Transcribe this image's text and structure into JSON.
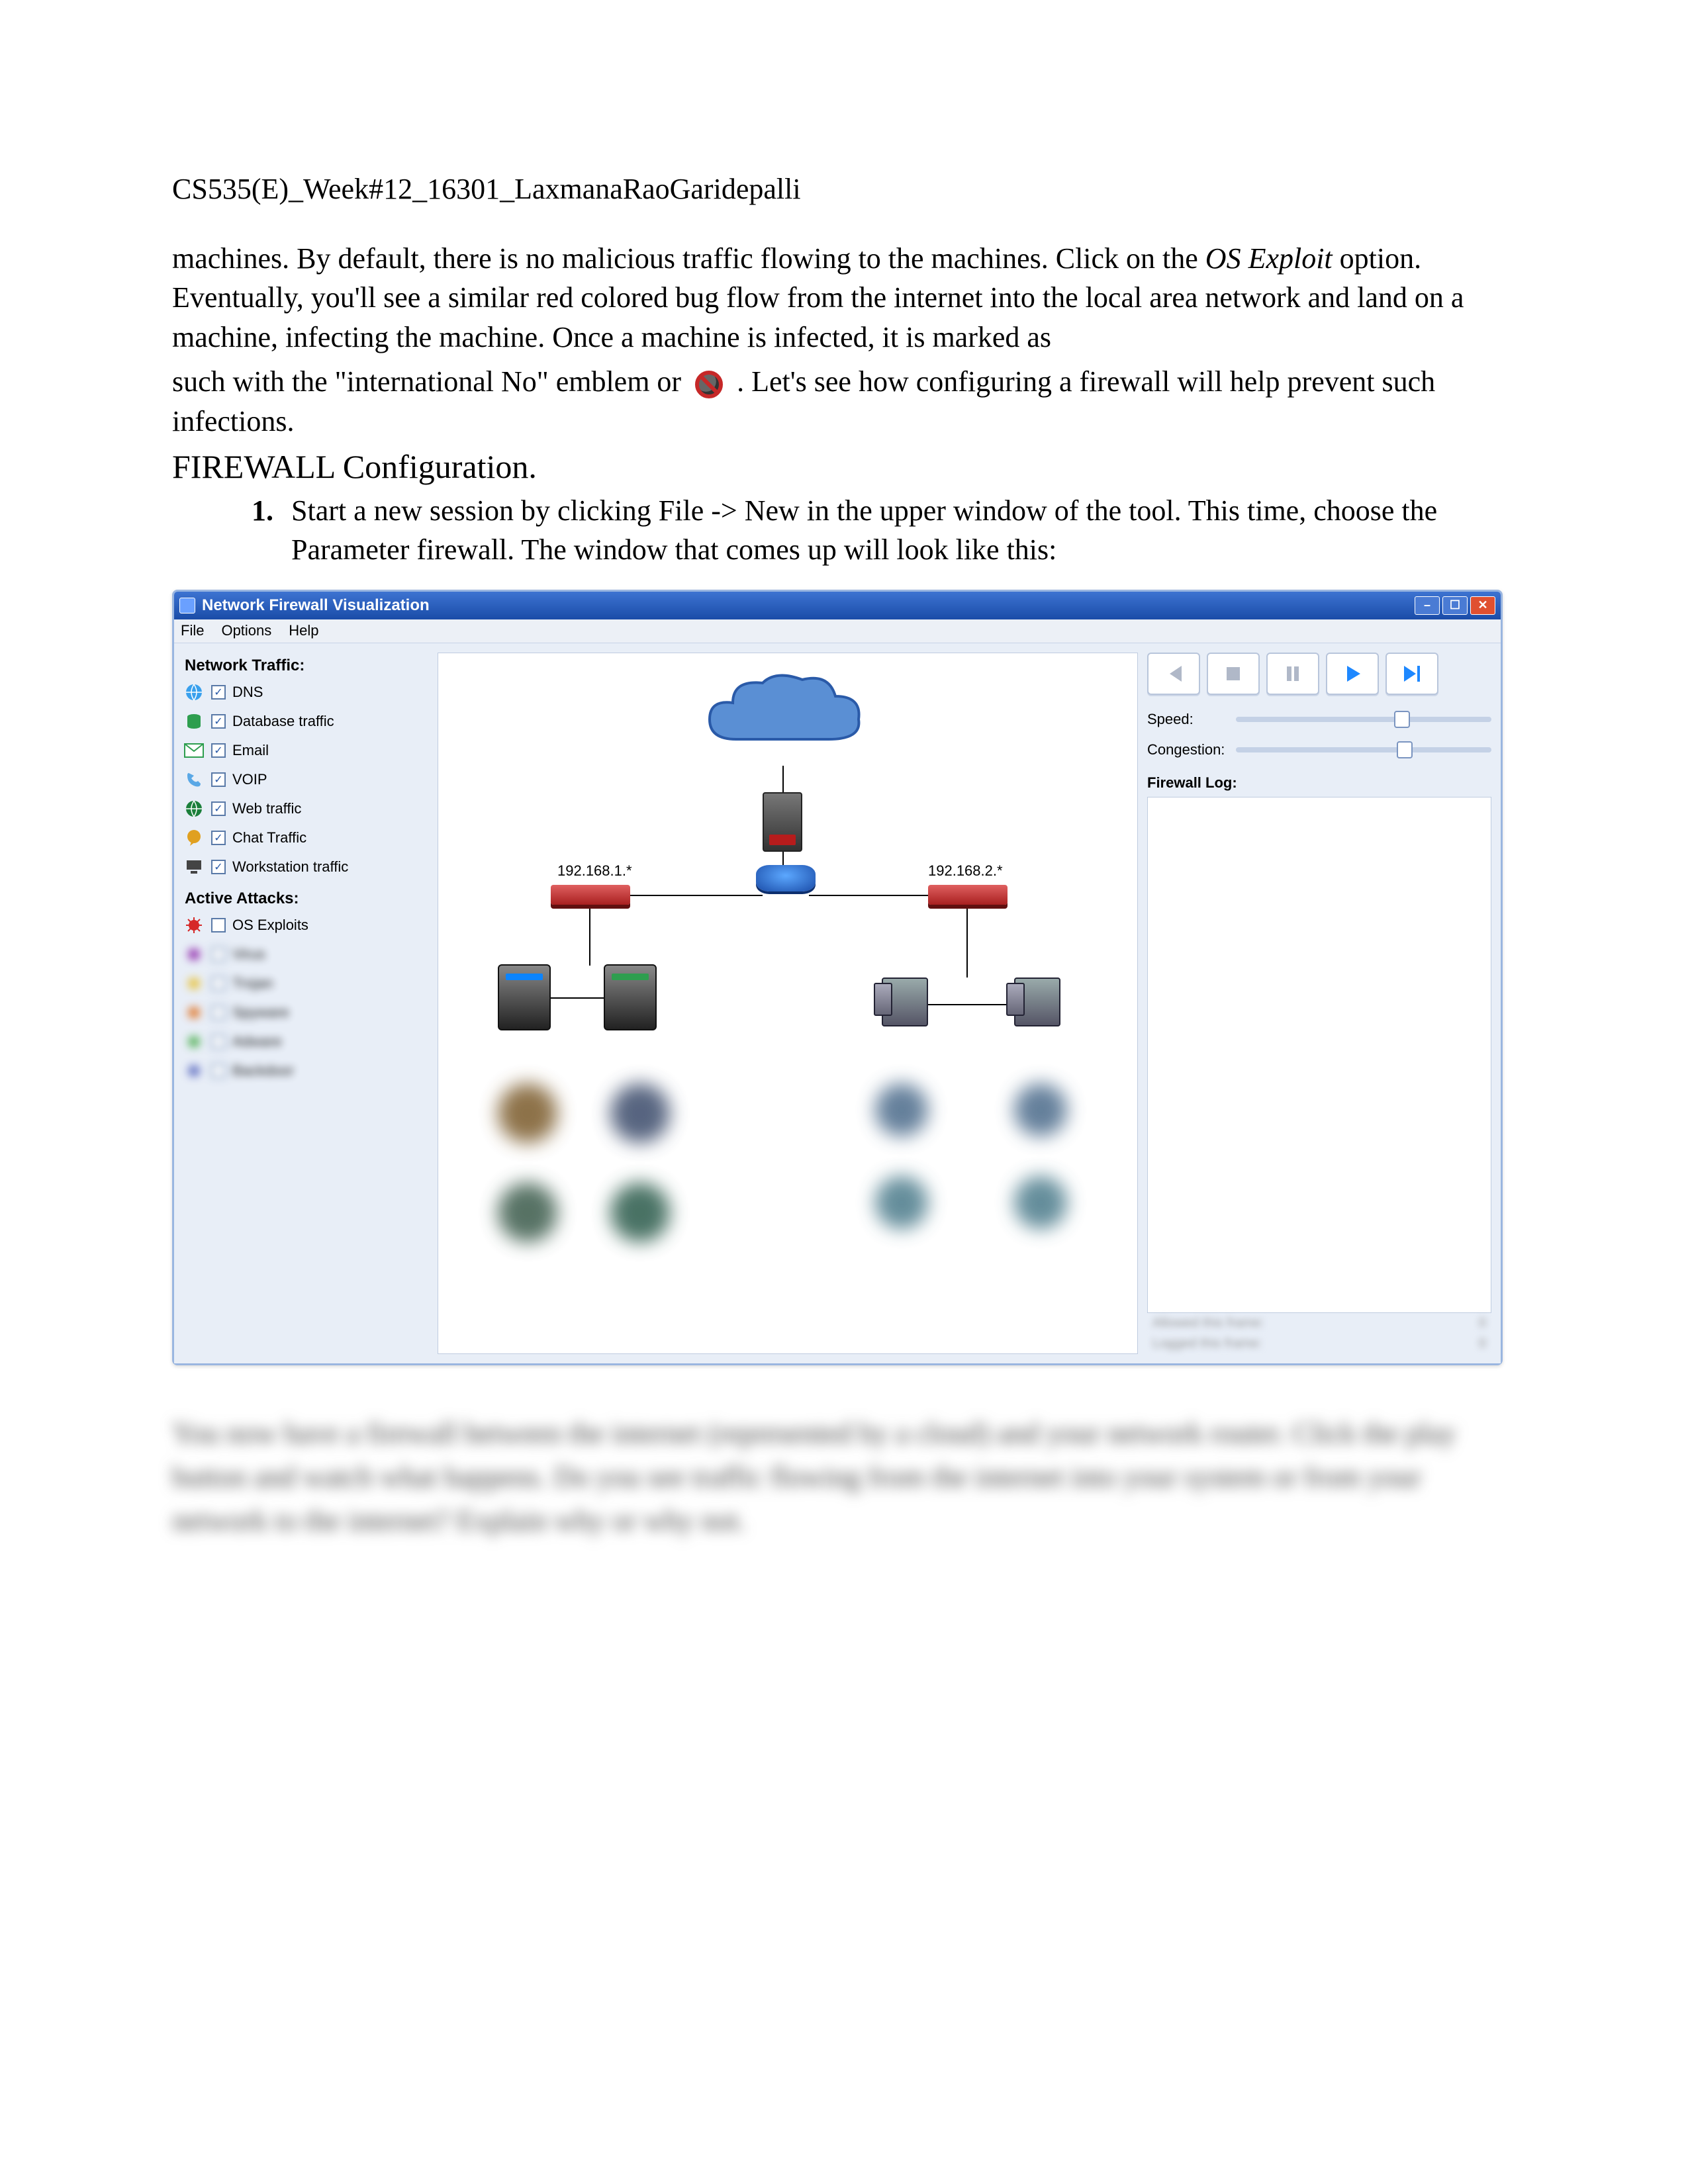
{
  "doc": {
    "header": "CS535(E)_Week#12_16301_LaxmanaRaoGaridepalli",
    "para1_a": "machines.   By default, there is no malicious traffic flowing to the machines.  Click on the ",
    "para1_b": "OS Exploit",
    "para1_c": " option.  Eventually, you'll see a similar red colored bug flow from the internet into the local area network and land on a machine, infecting the machine.  Once a machine is infected, it is marked as",
    "para2_a": "such with the \"international No\" emblem or ",
    "para2_b": ".   Let's see how configuring a firewall will help prevent such infections.",
    "section_title": "FIREWALL Configuration.",
    "step1_num": "1.",
    "step1_text": "Start a new session by clicking File -> New in the upper window of the tool.  This time, choose the Parameter firewall.  The window that comes up will look like this:",
    "blurred": "You now have a firewall between the internet (represented by a cloud) and your network router.  Click the play button and watch what happens.  Do you see traffic flowing from the internet into your system or from your network to the internet?  Explain why or why not."
  },
  "win": {
    "title": "Network Firewall Visualization",
    "menu": {
      "file": "File",
      "options": "Options",
      "help": "Help"
    }
  },
  "traffic": {
    "title": "Network Traffic:",
    "items": [
      {
        "label": "DNS",
        "checked": true,
        "color": "#39a0ed",
        "shape": "globe"
      },
      {
        "label": "Database traffic",
        "checked": true,
        "color": "#2e9e4f",
        "shape": "db"
      },
      {
        "label": "Email",
        "checked": true,
        "color": "#2e9e4f",
        "shape": "mail"
      },
      {
        "label": "VOIP",
        "checked": true,
        "color": "#5aa8e6",
        "shape": "phone"
      },
      {
        "label": "Web traffic",
        "checked": true,
        "color": "#1b7f3b",
        "shape": "globe"
      },
      {
        "label": "Chat Traffic",
        "checked": true,
        "color": "#e0a020",
        "shape": "chat"
      },
      {
        "label": "Workstation traffic",
        "checked": true,
        "color": "#444",
        "shape": "pc"
      }
    ]
  },
  "attacks": {
    "title": "Active Attacks:",
    "items": [
      {
        "label": "OS Exploits",
        "checked": false,
        "color": "#d62828"
      },
      {
        "label": "Virus",
        "checked": false,
        "color": "#8e24aa"
      },
      {
        "label": "Trojan",
        "checked": false,
        "color": "#e8c030"
      },
      {
        "label": "Spyware",
        "checked": false,
        "color": "#e07020"
      },
      {
        "label": "Adware",
        "checked": false,
        "color": "#4caf50"
      },
      {
        "label": "Backdoor",
        "checked": false,
        "color": "#5c6bc0"
      }
    ]
  },
  "net": {
    "subnet_a": "192.168.1.*",
    "subnet_b": "192.168.2.*"
  },
  "controls": {
    "colors": {
      "inactive": "#b0b8c8",
      "active": "#1e88ff"
    },
    "speed_label": "Speed:",
    "congestion_label": "Congestion:",
    "speed_pos": 0.62,
    "congestion_pos": 0.63,
    "log_label": "Firewall Log:",
    "stat1_label": "Allowed this frame:",
    "stat1_val": "0",
    "stat2_label": "Logged this frame:",
    "stat2_val": "0"
  }
}
